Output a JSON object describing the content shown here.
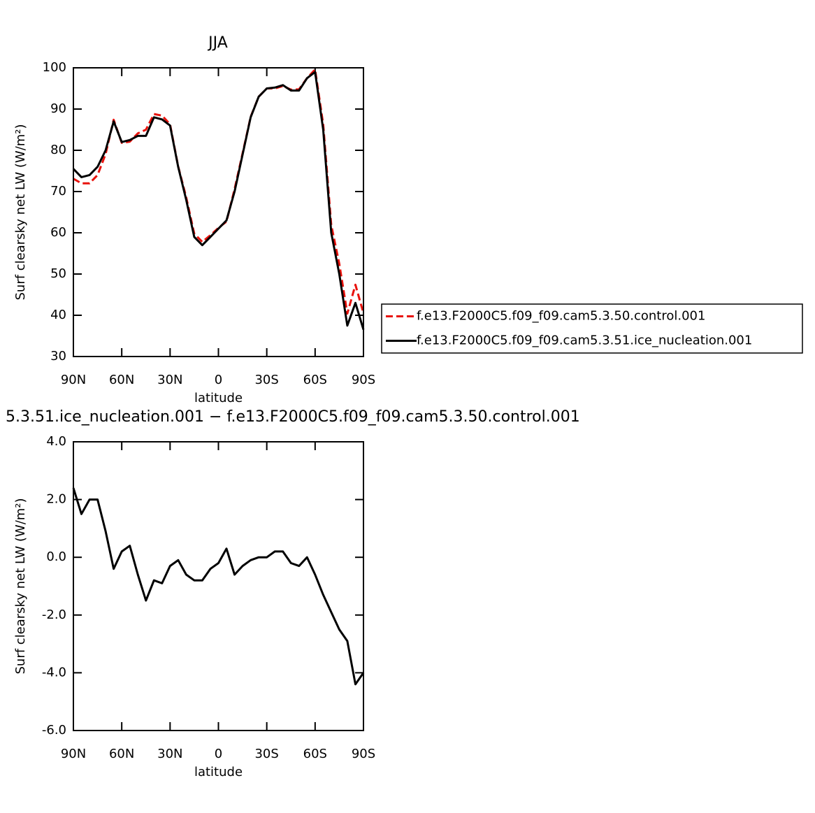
{
  "chart_data": [
    {
      "type": "line",
      "title": "JJA",
      "xlabel": "latitude",
      "ylabel": "Surf clearsky net LW (W/m²)",
      "x": [
        90,
        85,
        80,
        75,
        70,
        65,
        60,
        55,
        50,
        45,
        40,
        35,
        30,
        25,
        20,
        15,
        10,
        5,
        0,
        -5,
        -10,
        -15,
        -20,
        -25,
        -30,
        -35,
        -40,
        -45,
        -50,
        -55,
        -60,
        -65,
        -70,
        -75,
        -80,
        -85,
        -90
      ],
      "series": [
        {
          "name": "f.e13.F2000C5.f09_f09.cam5.3.50.control.001",
          "color": "#e8120c",
          "dash": true,
          "values": [
            73.1,
            72.0,
            72.0,
            74.0,
            79.1,
            87.4,
            81.8,
            82.1,
            84.1,
            85.0,
            88.8,
            88.4,
            86.3,
            76.1,
            68.6,
            59.8,
            57.8,
            59.4,
            61.2,
            62.7,
            70.6,
            79.3,
            88.1,
            93.0,
            95.0,
            95.0,
            95.6,
            94.7,
            94.8,
            97.5,
            99.6,
            86.3,
            61.9,
            52.5,
            40.4,
            47.4,
            40.5
          ]
        },
        {
          "name": "f.e13.F2000C5.f09_f09.cam5.3.51.ice_nucleation.001",
          "color": "#000000",
          "dash": false,
          "values": [
            75.5,
            73.5,
            74.0,
            76.0,
            80.0,
            87.0,
            82.0,
            82.5,
            83.5,
            83.5,
            88.0,
            87.5,
            86.0,
            76.0,
            68.0,
            59.0,
            57.0,
            59.0,
            61.0,
            63.0,
            70.0,
            79.0,
            88.0,
            93.0,
            95.0,
            95.2,
            95.8,
            94.5,
            94.5,
            97.5,
            99.0,
            85.0,
            60.0,
            50.0,
            37.5,
            43.0,
            36.5
          ]
        }
      ],
      "xlim": [
        90,
        -90
      ],
      "xticks": [
        {
          "value": 90,
          "label": "90N"
        },
        {
          "value": 60,
          "label": "60N"
        },
        {
          "value": 30,
          "label": "30N"
        },
        0,
        {
          "value": -30,
          "label": "30S"
        },
        {
          "value": -60,
          "label": "60S"
        },
        {
          "value": -90,
          "label": "90S"
        }
      ],
      "ylim": [
        30,
        100
      ],
      "yticks": [
        30,
        40,
        50,
        60,
        70,
        80,
        90,
        100
      ],
      "legend": "right"
    },
    {
      "type": "line",
      "title": "5.3.51.ice_nucleation.001 − f.e13.F2000C5.f09_f09.cam5.3.50.control.001",
      "xlabel": "latitude",
      "ylabel": "Surf clearsky net LW (W/m²)",
      "x": [
        90,
        85,
        80,
        75,
        70,
        65,
        60,
        55,
        50,
        45,
        40,
        35,
        30,
        25,
        20,
        15,
        10,
        5,
        0,
        -5,
        -10,
        -15,
        -20,
        -25,
        -30,
        -35,
        -40,
        -45,
        -50,
        -55,
        -60,
        -65,
        -70,
        -75,
        -80,
        -85,
        -90
      ],
      "series": [
        {
          "color": "#000000",
          "dash": false,
          "values": [
            2.4,
            1.5,
            2.0,
            2.0,
            0.9,
            -0.4,
            0.2,
            0.4,
            -0.6,
            -1.5,
            -0.8,
            -0.9,
            -0.3,
            -0.1,
            -0.6,
            -0.8,
            -0.8,
            -0.4,
            -0.2,
            0.3,
            -0.6,
            -0.3,
            -0.1,
            0.0,
            0.0,
            0.2,
            0.2,
            -0.2,
            -0.3,
            0.0,
            -0.6,
            -1.3,
            -1.9,
            -2.5,
            -2.9,
            -4.4,
            -4.0
          ]
        }
      ],
      "xlim": [
        90,
        -90
      ],
      "xticks": [
        {
          "value": 90,
          "label": "90N"
        },
        {
          "value": 60,
          "label": "60N"
        },
        {
          "value": 30,
          "label": "30N"
        },
        0,
        {
          "value": -30,
          "label": "30S"
        },
        {
          "value": -60,
          "label": "60S"
        },
        {
          "value": -90,
          "label": "90S"
        }
      ],
      "ylim": [
        -6,
        4
      ],
      "yticks": [
        {
          "value": -6,
          "label": "-6.0"
        },
        {
          "value": -4,
          "label": "-4.0"
        },
        {
          "value": -2,
          "label": "-2.0"
        },
        {
          "value": 0,
          "label": "0.0"
        },
        {
          "value": 2,
          "label": "2.0"
        },
        {
          "value": 4,
          "label": "4.0"
        }
      ]
    }
  ]
}
